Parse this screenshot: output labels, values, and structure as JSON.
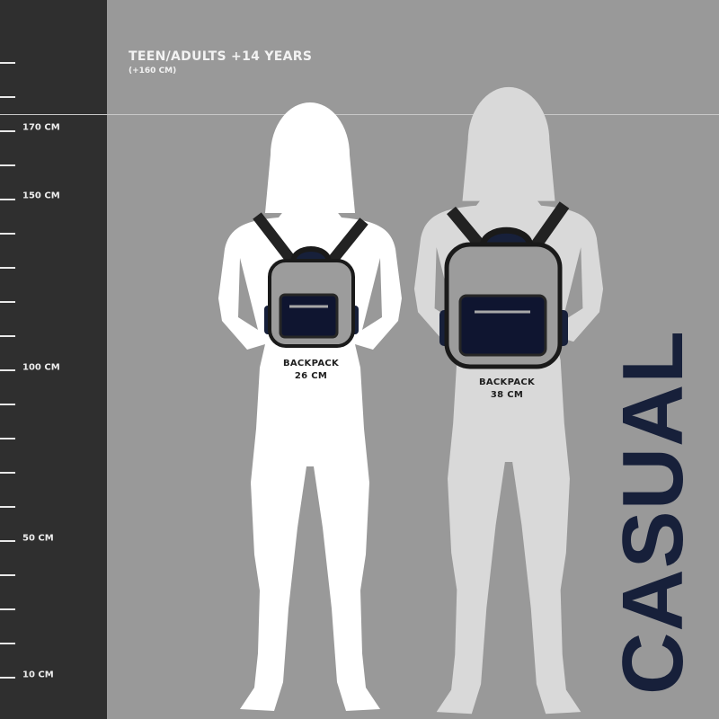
{
  "header": {
    "title": "TEEN/ADULTS +14 YEARS",
    "subtitle": "(+160 CM)"
  },
  "ruler": {
    "labels": [
      "170 CM",
      "150 CM",
      "100 CM",
      "50 CM",
      "10 CM"
    ]
  },
  "backpacks": [
    {
      "label": "BACKPACK",
      "size": "26 CM"
    },
    {
      "label": "BACKPACK",
      "size": "38 CM"
    }
  ],
  "brand": "CASUAL",
  "colors": {
    "background": "#999999",
    "ruler": "#2f2f2f",
    "navy": "#17203a",
    "figure_left": "#ffffff",
    "figure_right": "#d9d9d9"
  }
}
